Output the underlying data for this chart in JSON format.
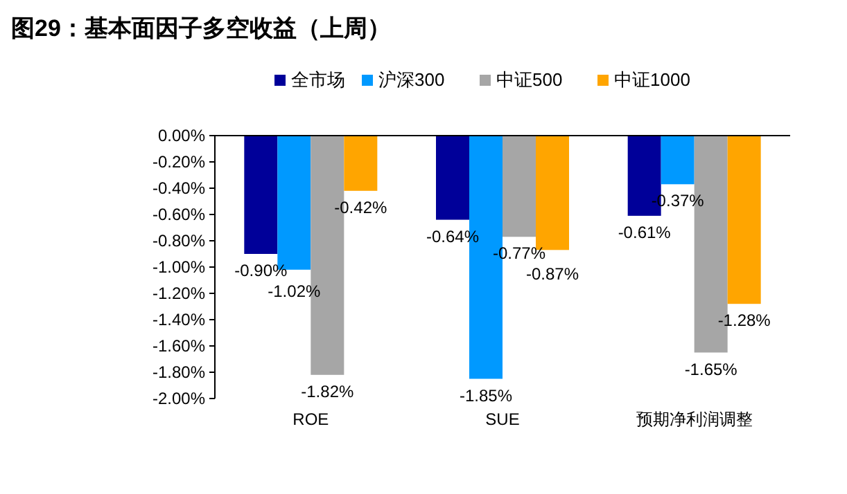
{
  "chart_data": {
    "type": "bar",
    "title": "图29：基本面因子多空收益（上周）",
    "categories": [
      "ROE",
      "SUE",
      "预期净利润调整"
    ],
    "series": [
      {
        "name": "全市场",
        "color": "#000099",
        "values": [
          -0.9,
          -0.64,
          -0.61
        ],
        "value_labels": [
          "-0.90%",
          "-0.64%",
          "-0.61%"
        ]
      },
      {
        "name": "沪深300",
        "color": "#0099ff",
        "values": [
          -1.02,
          -1.85,
          -0.37
        ],
        "value_labels": [
          "-1.02%",
          "-1.85%",
          "-0.37%"
        ]
      },
      {
        "name": "中证500",
        "color": "#a6a6a6",
        "values": [
          -1.82,
          -0.77,
          -1.65
        ],
        "value_labels": [
          "-1.82%",
          "-0.77%",
          "-1.65%"
        ]
      },
      {
        "name": "中证1000",
        "color": "#ffa500",
        "values": [
          -0.42,
          -0.87,
          -1.28
        ],
        "value_labels": [
          "-0.42%",
          "-0.87%",
          "-1.28%"
        ]
      }
    ],
    "ylim": [
      -2,
      0
    ],
    "yticks": [
      {
        "value": 0,
        "label": "0.00%"
      },
      {
        "value": -0.2,
        "label": "-0.20%"
      },
      {
        "value": -0.4,
        "label": "-0.40%"
      },
      {
        "value": -0.6,
        "label": "-0.60%"
      },
      {
        "value": -0.8,
        "label": "-0.80%"
      },
      {
        "value": -1.0,
        "label": "-1.00%"
      },
      {
        "value": -1.2,
        "label": "-1.20%"
      },
      {
        "value": -1.4,
        "label": "-1.40%"
      },
      {
        "value": -1.6,
        "label": "-1.60%"
      },
      {
        "value": -1.8,
        "label": "-1.80%"
      },
      {
        "value": -2.0,
        "label": "-2.00%"
      }
    ],
    "legend": "top",
    "grid": false
  }
}
